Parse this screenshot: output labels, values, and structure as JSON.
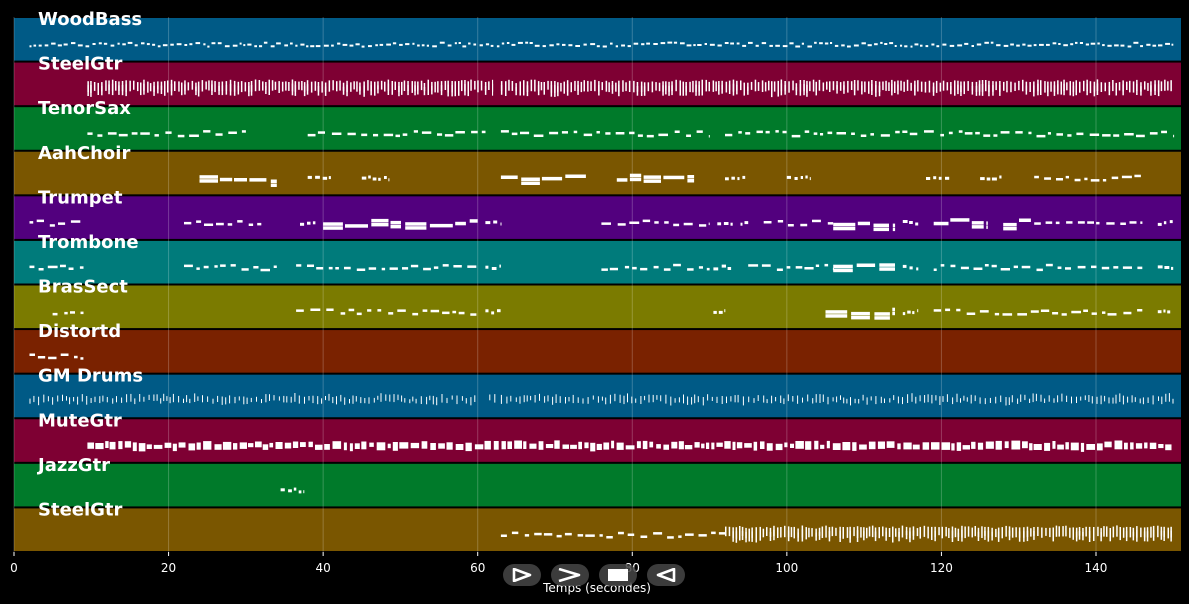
{
  "chart_data": {
    "type": "piano-roll",
    "title": "",
    "xlabel": "Temps (secondes)",
    "xlim": [
      0,
      151
    ],
    "x_ticks": [
      0,
      20,
      40,
      60,
      80,
      100,
      120,
      140
    ],
    "grid": true,
    "tracks": [
      {
        "name": "WoodBass",
        "color": "#005a86",
        "note_color": "#ffffff",
        "segments": [
          [
            2,
            150,
            "dense-short"
          ]
        ]
      },
      {
        "name": "SteelGtr",
        "color": "#7e0033",
        "note_color": "#ffffff",
        "segments": [
          [
            9.5,
            62,
            "chords"
          ],
          [
            63,
            150,
            "chords"
          ]
        ]
      },
      {
        "name": "TenorSax",
        "color": "#007a2a",
        "note_color": "#ffffff",
        "segments": [
          [
            9.5,
            30,
            "melody"
          ],
          [
            38,
            61,
            "melody"
          ],
          [
            63,
            90,
            "melody"
          ],
          [
            92,
            150,
            "melody"
          ]
        ]
      },
      {
        "name": "AahChoir",
        "color": "#7a5600",
        "note_color": "#ffffff",
        "segments": [
          [
            24,
            34,
            "long"
          ],
          [
            38,
            41,
            "short"
          ],
          [
            45,
            48.5,
            "short"
          ],
          [
            63,
            74,
            "long"
          ],
          [
            78,
            88,
            "long"
          ],
          [
            92,
            95,
            "short"
          ],
          [
            100,
            103,
            "short"
          ],
          [
            118,
            121,
            "short"
          ],
          [
            125,
            128,
            "short"
          ],
          [
            132,
            146,
            "melody"
          ]
        ]
      },
      {
        "name": "Trumpet",
        "color": "#52007e",
        "note_color": "#ffffff",
        "segments": [
          [
            2,
            9,
            "melody"
          ],
          [
            22,
            32,
            "melody"
          ],
          [
            37,
            39,
            "short"
          ],
          [
            40,
            60,
            "long"
          ],
          [
            61,
            63,
            "short"
          ],
          [
            76,
            90,
            "melody"
          ],
          [
            91,
            93,
            "short"
          ],
          [
            94,
            95,
            "short"
          ],
          [
            97,
            106,
            "melody"
          ],
          [
            106,
            114,
            "long"
          ],
          [
            115,
            117,
            "short"
          ],
          [
            119,
            126,
            "long"
          ],
          [
            128,
            132,
            "long"
          ],
          [
            132,
            146,
            "melody"
          ],
          [
            148,
            150,
            "short"
          ]
        ]
      },
      {
        "name": "Trombone",
        "color": "#007b7b",
        "note_color": "#ffffff",
        "segments": [
          [
            2,
            9,
            "melody"
          ],
          [
            22,
            34,
            "melody"
          ],
          [
            36.5,
            60,
            "melody"
          ],
          [
            61,
            63,
            "short"
          ],
          [
            76,
            90,
            "melody"
          ],
          [
            90.5,
            93,
            "short"
          ],
          [
            95,
            106,
            "melody"
          ],
          [
            106,
            114,
            "long"
          ],
          [
            115,
            117,
            "short"
          ],
          [
            119,
            146,
            "melody"
          ],
          [
            148,
            150,
            "short"
          ]
        ]
      },
      {
        "name": "BrasSect",
        "color": "#7b7b00",
        "note_color": "#ffffff",
        "segments": [
          [
            5,
            9,
            "melody"
          ],
          [
            36.5,
            60,
            "melody"
          ],
          [
            61,
            63,
            "short"
          ],
          [
            90.5,
            92,
            "short"
          ],
          [
            105,
            114,
            "long"
          ],
          [
            115,
            117,
            "short"
          ],
          [
            119,
            146,
            "melody"
          ],
          [
            148,
            150,
            "short"
          ]
        ]
      },
      {
        "name": "Distortd",
        "color": "#7a2200",
        "note_color": "#ffffff",
        "segments": [
          [
            2,
            9,
            "melody"
          ]
        ]
      },
      {
        "name": "GM Drums",
        "color": "#005a86",
        "note_color": "#ffffff",
        "segments": [
          [
            2,
            60,
            "drums"
          ],
          [
            61.5,
            62.5,
            "drums"
          ],
          [
            63,
            150,
            "drums"
          ]
        ]
      },
      {
        "name": "MuteGtr",
        "color": "#7e0033",
        "note_color": "#ffffff",
        "segments": [
          [
            9.5,
            150,
            "rhythm"
          ]
        ]
      },
      {
        "name": "JazzGtr",
        "color": "#007a2a",
        "note_color": "#ffffff",
        "segments": [
          [
            34.5,
            37.5,
            "short"
          ]
        ]
      },
      {
        "name": "SteelGtr",
        "color": "#7a5600",
        "note_color": "#ffffff",
        "segments": [
          [
            63,
            92,
            "melody"
          ],
          [
            92,
            150,
            "chords"
          ]
        ]
      }
    ]
  },
  "playback_controls": [
    {
      "name": "play-icon"
    },
    {
      "name": "fast-forward-icon"
    },
    {
      "name": "stop-icon"
    },
    {
      "name": "rewind-icon"
    }
  ]
}
